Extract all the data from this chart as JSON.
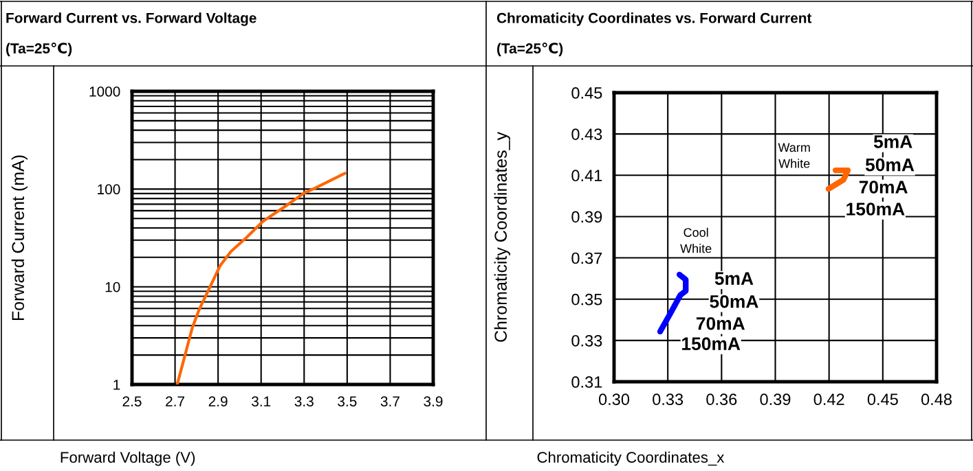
{
  "chart_data": [
    {
      "type": "line",
      "title": "Forward Current vs. Forward Voltage",
      "subtitle": "(Ta=25℃)",
      "xlabel": "Forward Voltage (V)",
      "ylabel": "Forward Current (mA)",
      "log": "y",
      "grid": true,
      "legend": false,
      "marker": "none",
      "line_style": "solid",
      "xlim": [
        2.5,
        3.9
      ],
      "xticks": [
        2.5,
        2.7,
        2.9,
        3.1,
        3.3,
        3.5,
        3.7,
        3.9
      ],
      "ylim": [
        1,
        1000
      ],
      "yticks": [
        1,
        10,
        100,
        1000
      ],
      "series": [
        {
          "color": "#ff6600",
          "x": [
            2.71,
            2.78,
            2.81,
            2.88,
            2.91,
            2.96,
            3.03,
            3.11,
            3.21,
            3.3,
            3.35,
            3.49
          ],
          "values": [
            1,
            3.8,
            5.7,
            12,
            16.5,
            23,
            31.6,
            47,
            66,
            91,
            102,
            145
          ]
        }
      ]
    },
    {
      "type": "line",
      "title": "Chromaticity Coordinates vs. Forward Current",
      "subtitle": "(Ta=25℃)",
      "xlabel": "Chromaticity Coordinates_x",
      "ylabel": "Chromaticity Coordinates_y",
      "grid": true,
      "legend": false,
      "marker": "none",
      "line_style": "solid",
      "xlim": [
        0.3,
        0.48
      ],
      "xticks": [
        {
          "value": 0.3,
          "label": "0.30"
        },
        0.33,
        0.36,
        0.39,
        0.42,
        0.45,
        0.48
      ],
      "ylim": [
        0.31,
        0.45
      ],
      "yticks": [
        0.31,
        0.33,
        0.35,
        0.37,
        0.39,
        0.41,
        0.43,
        0.45
      ],
      "series": [
        {
          "color": "#0000ff",
          "x": [
            0.3365,
            0.34,
            0.34,
            0.337,
            0.332,
            0.3257
          ],
          "values": [
            0.3619,
            0.3595,
            0.354,
            0.352,
            0.344,
            0.3343
          ]
        },
        {
          "color": "#ff6600",
          "x": [
            0.4197,
            0.428,
            0.4305,
            0.4236
          ],
          "values": [
            0.4034,
            0.4078,
            0.4124,
            0.4124
          ]
        }
      ],
      "annotations": [
        "Cool\nWhite",
        "5mA",
        "50mA",
        "70mA",
        "150mA",
        "Warm\nWhite",
        "5mA",
        "50mA",
        "70mA",
        "150mA"
      ]
    }
  ]
}
